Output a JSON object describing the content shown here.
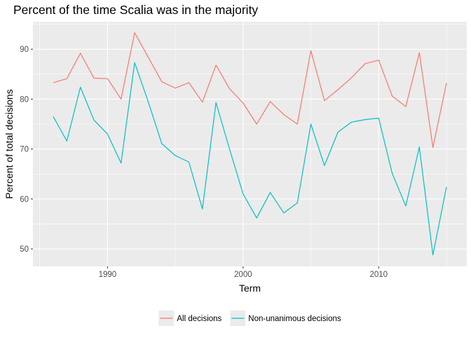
{
  "chart_data": {
    "type": "line",
    "title": "Percent of the time Scalia was in the majority",
    "xlabel": "Term",
    "ylabel": "Percent of total decisions",
    "xlim": [
      1984.5,
      2016.5
    ],
    "ylim": [
      46.5,
      95.5
    ],
    "x_ticks": [
      1990,
      2000,
      2010
    ],
    "y_ticks": [
      50,
      60,
      70,
      80,
      90
    ],
    "grid": true,
    "legend_position": "bottom",
    "x": [
      1986,
      1987,
      1988,
      1989,
      1990,
      1991,
      1992,
      1993,
      1994,
      1995,
      1996,
      1997,
      1998,
      1999,
      2000,
      2001,
      2002,
      2003,
      2004,
      2005,
      2006,
      2007,
      2008,
      2009,
      2010,
      2011,
      2012,
      2013,
      2014,
      2015
    ],
    "series": [
      {
        "name": "All decisions",
        "color": "#F8766D",
        "values": [
          83.3,
          84.1,
          89.2,
          84.2,
          84.1,
          80.0,
          93.3,
          88.4,
          83.5,
          82.2,
          83.3,
          79.4,
          86.8,
          82.1,
          79.2,
          75.0,
          79.5,
          76.9,
          75.0,
          89.7,
          79.7,
          81.9,
          84.3,
          87.1,
          87.8,
          80.6,
          78.5,
          89.3,
          70.3,
          83.2
        ]
      },
      {
        "name": "Non-unanimous decisions",
        "color": "#00BFC4",
        "values": [
          76.5,
          71.6,
          82.4,
          75.8,
          73.0,
          67.2,
          87.3,
          79.5,
          71.1,
          68.7,
          67.4,
          58.0,
          79.3,
          70.0,
          61.0,
          56.2,
          61.3,
          57.2,
          59.2,
          75.0,
          66.7,
          73.4,
          75.4,
          75.9,
          76.2,
          65.1,
          58.6,
          70.4,
          48.8,
          62.4
        ]
      }
    ]
  }
}
